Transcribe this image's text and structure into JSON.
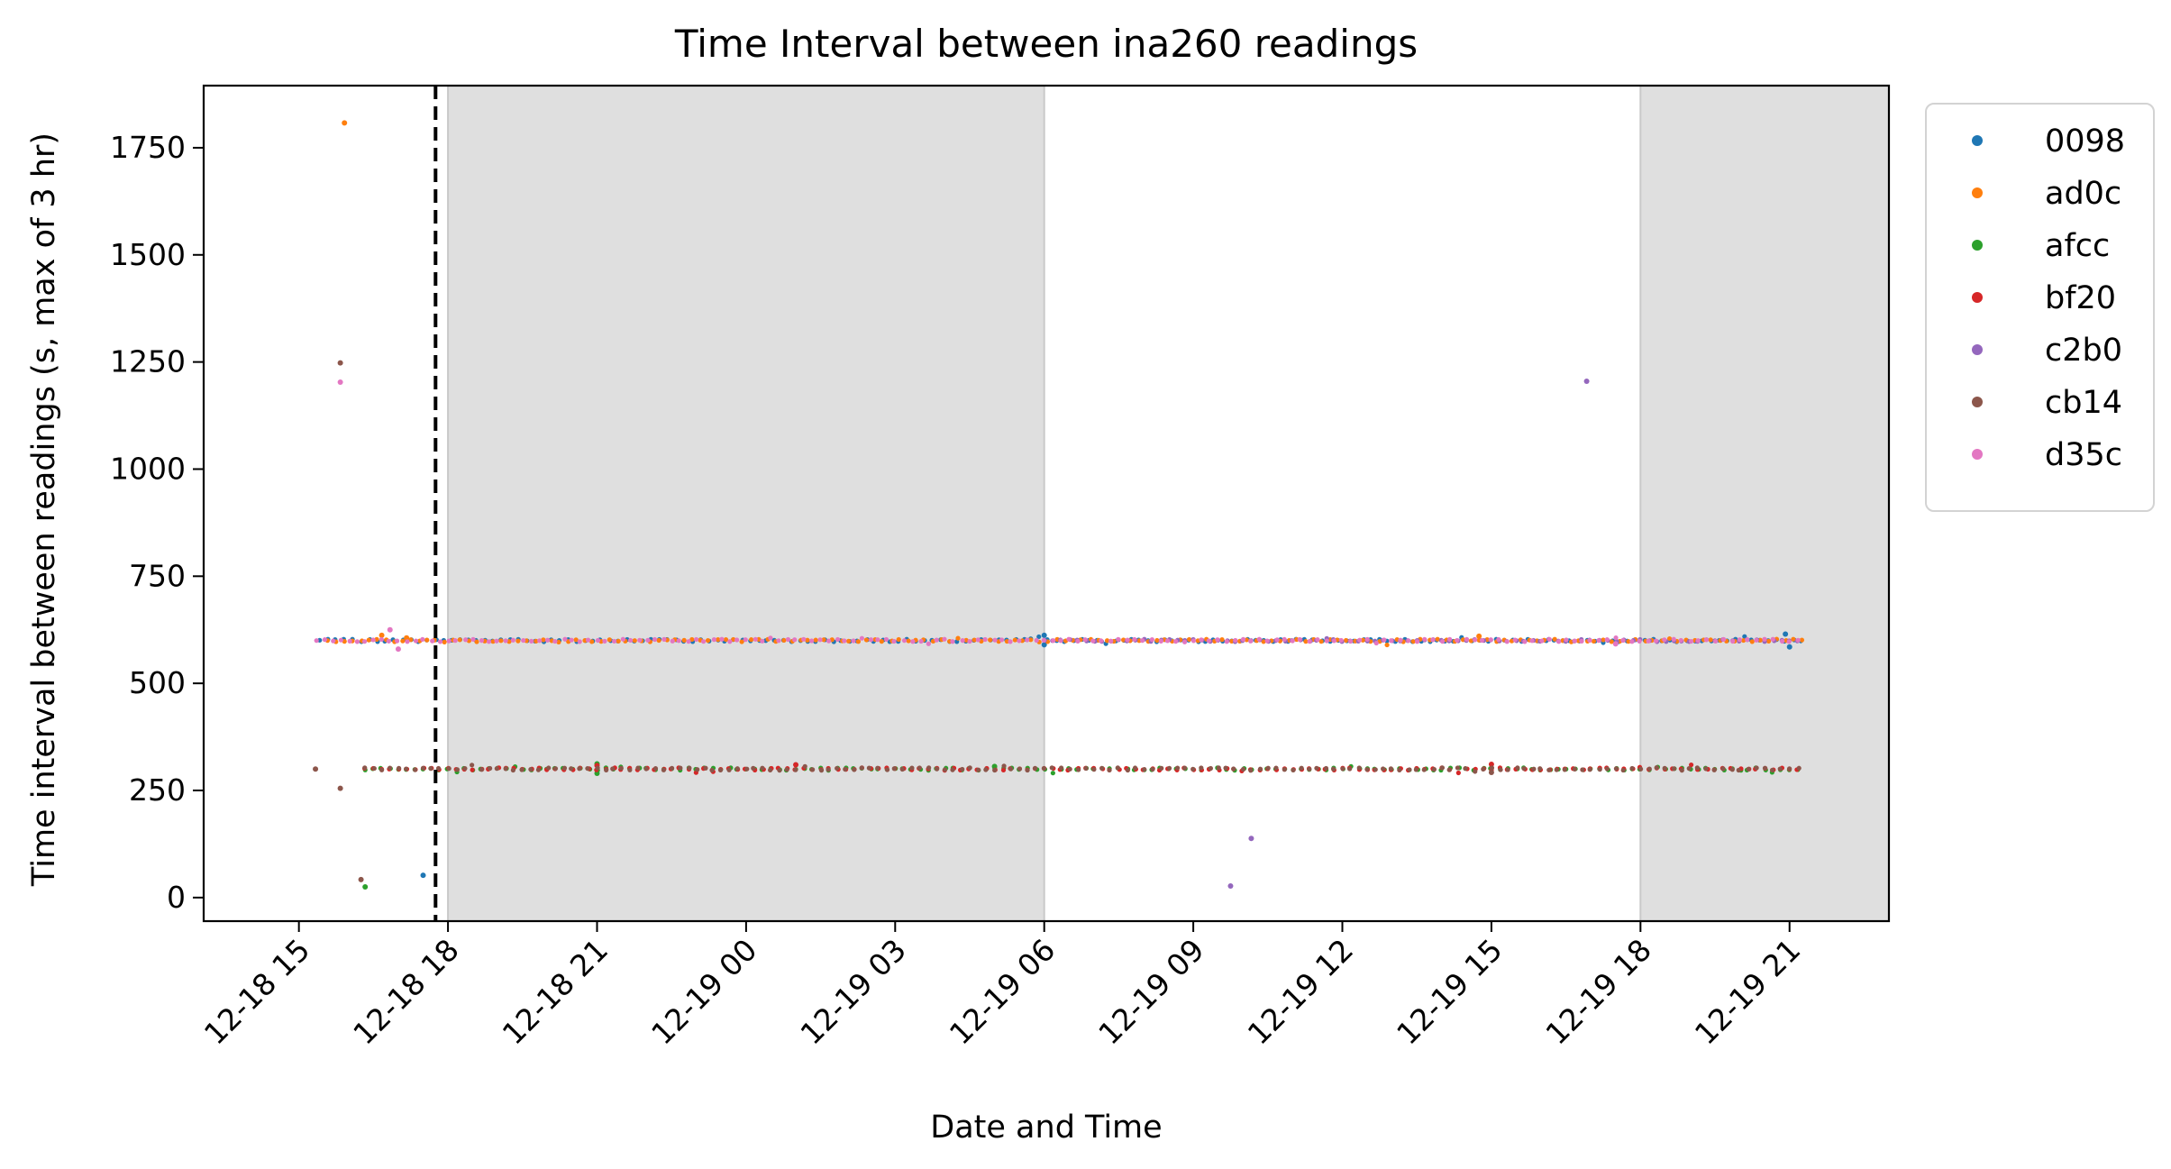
{
  "chart_data": {
    "type": "scatter",
    "title": "Time Interval between ina260 readings",
    "xlabel": "Date and Time",
    "ylabel": "Time interval between readings (s, max of 3 hr)",
    "x_unit": "hours from 12-18 00:00",
    "xlim": [
      "12-18 13:05",
      "12-19 23:00"
    ],
    "ylim": [
      -55,
      1895
    ],
    "x_tick_labels": [
      "12-18 15",
      "12-18 18",
      "12-18 21",
      "12-19 00",
      "12-19 03",
      "12-19 06",
      "12-19 09",
      "12-19 12",
      "12-19 15",
      "12-19 18",
      "12-19 21"
    ],
    "x_tick_values": [
      "12-18 15:00",
      "12-18 18:00",
      "12-18 21:00",
      "12-19 00:00",
      "12-19 03:00",
      "12-19 06:00",
      "12-19 09:00",
      "12-19 12:00",
      "12-19 15:00",
      "12-19 18:00",
      "12-19 21:00"
    ],
    "y_ticks": [
      0,
      250,
      500,
      750,
      1000,
      1250,
      1500,
      1750
    ],
    "y_tick_labels": [
      "0",
      "250",
      "500",
      "750",
      "1000",
      "1250",
      "1500",
      "1750"
    ],
    "shaded_regions": [
      {
        "start": "12-18 18:00",
        "end": "12-19 06:00",
        "color": "#dfdfdf"
      },
      {
        "start": "12-19 18:00",
        "end": "12-19 23:00",
        "color": "#dfdfdf"
      }
    ],
    "vertical_lines": [
      {
        "x": "12-18 17:45",
        "style": "dashed",
        "color": "#000000"
      }
    ],
    "grid": false,
    "legend_position": "outside-top-right",
    "series": [
      {
        "name": "0098",
        "color": "#1f77b4",
        "start": "12-18 15:25",
        "end": "12-19 21:15",
        "base": 600,
        "outliers": [
          {
            "x": "12-18 17:30",
            "y": 52
          },
          {
            "x": "12-19 06:00",
            "y": 612
          },
          {
            "x": "12-19 06:00",
            "y": 590
          },
          {
            "x": "12-19 20:55",
            "y": 615
          },
          {
            "x": "12-19 21:00",
            "y": 585
          }
        ]
      },
      {
        "name": "ad0c",
        "color": "#ff7f0e",
        "start": "12-18 15:35",
        "end": "12-19 21:15",
        "base": 600,
        "outliers": [
          {
            "x": "12-18 15:55",
            "y": 1808
          },
          {
            "x": "12-18 16:40",
            "y": 612
          },
          {
            "x": "12-18 17:10",
            "y": 606
          },
          {
            "x": "12-19 14:45",
            "y": 610
          }
        ]
      },
      {
        "name": "afcc",
        "color": "#2ca02c",
        "start": "12-18 16:20",
        "end": "12-19 21:15",
        "base": 300,
        "outliers": [
          {
            "x": "12-18 16:20",
            "y": 25
          },
          {
            "x": "12-18 21:00",
            "y": 312
          },
          {
            "x": "12-18 21:00",
            "y": 290
          },
          {
            "x": "12-19 05:00",
            "y": 306
          }
        ]
      },
      {
        "name": "bf20",
        "color": "#d62728",
        "start": "12-18 16:20",
        "end": "12-19 21:15",
        "base": 300,
        "outliers": [
          {
            "x": "12-18 21:00",
            "y": 308
          },
          {
            "x": "12-19 01:00",
            "y": 310
          },
          {
            "x": "12-19 15:00",
            "y": 311
          }
        ]
      },
      {
        "name": "c2b0",
        "color": "#9467bd",
        "start": "12-19 06:00",
        "end": "12-19 21:15",
        "base": 600,
        "outliers": [
          {
            "x": "12-19 09:45",
            "y": 27
          },
          {
            "x": "12-19 10:10",
            "y": 138
          },
          {
            "x": "12-19 16:55",
            "y": 1205
          }
        ]
      },
      {
        "name": "cb14",
        "color": "#8c564b",
        "start": "12-18 16:20",
        "end": "12-19 21:15",
        "base": 300,
        "outliers": [
          {
            "x": "12-18 15:20",
            "y": 300
          },
          {
            "x": "12-18 15:50",
            "y": 1248
          },
          {
            "x": "12-18 15:50",
            "y": 255
          },
          {
            "x": "12-18 16:15",
            "y": 42
          },
          {
            "x": "12-19 15:00",
            "y": 292
          }
        ]
      },
      {
        "name": "d35c",
        "color": "#e377c2",
        "start": "12-18 15:20",
        "end": "12-19 21:15",
        "base": 600,
        "outliers": [
          {
            "x": "12-18 15:50",
            "y": 1203
          },
          {
            "x": "12-18 16:50",
            "y": 625
          },
          {
            "x": "12-18 17:00",
            "y": 580
          },
          {
            "x": "12-19 17:30",
            "y": 592
          }
        ]
      }
    ]
  }
}
